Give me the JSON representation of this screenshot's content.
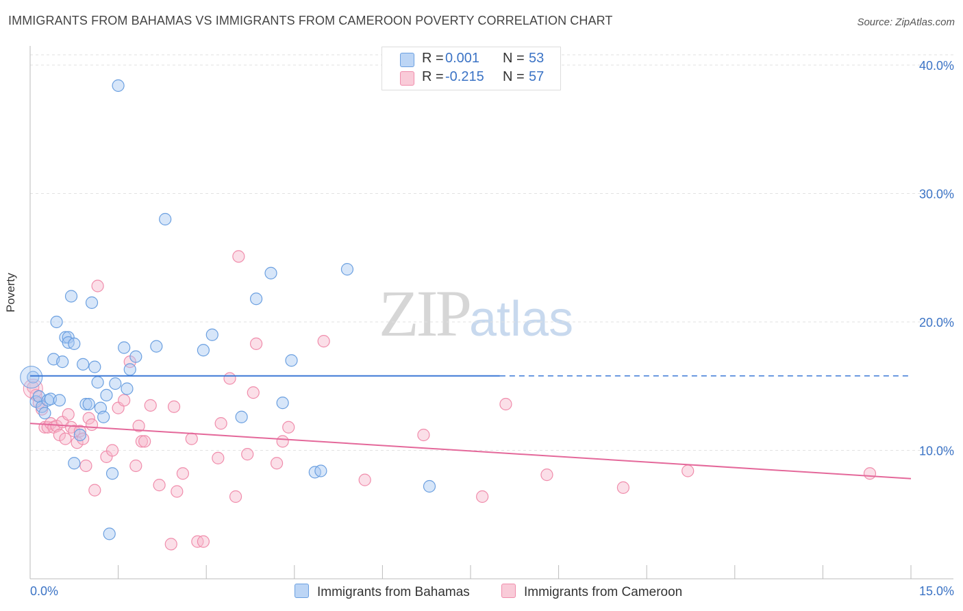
{
  "title": "IMMIGRANTS FROM BAHAMAS VS IMMIGRANTS FROM CAMEROON POVERTY CORRELATION CHART",
  "source": "Source: ZipAtlas.com",
  "watermark": {
    "zip": "ZIP",
    "atlas": "atlas"
  },
  "legend": {
    "bahamas": {
      "r_label": "R =",
      "r_value": "0.001",
      "n_label": "N =",
      "n_value": "53",
      "color": "#a7c8f2"
    },
    "cameroon": {
      "r_label": "R =",
      "r_value": "-0.215",
      "n_label": "N =",
      "n_value": "57",
      "color": "#f7b8cb"
    }
  },
  "chart_data": {
    "type": "scatter",
    "title": "IMMIGRANTS FROM BAHAMAS VS IMMIGRANTS FROM CAMEROON POVERTY CORRELATION CHART",
    "xlabel": "",
    "ylabel": "Poverty",
    "xlim": [
      0,
      15
    ],
    "ylim": [
      0,
      40
    ],
    "x_tick_labels": [
      "0.0%",
      "15.0%"
    ],
    "y_tick_labels": [
      "10.0%",
      "20.0%",
      "30.0%",
      "40.0%"
    ],
    "y_ticks": [
      10,
      20,
      30,
      40
    ],
    "grid": true,
    "legend_position": "top-center",
    "series": [
      {
        "name": "Immigrants from Bahamas",
        "color": "#6a9fe0",
        "fill": "#a7c8f2",
        "trend": {
          "x": [
            0,
            8.0
          ],
          "y": [
            15.8,
            15.8
          ],
          "dashed_extension_to": 15
        },
        "points": [
          [
            0.05,
            15.7
          ],
          [
            0.1,
            13.8
          ],
          [
            0.15,
            14.2
          ],
          [
            0.2,
            13.4
          ],
          [
            0.25,
            12.9
          ],
          [
            0.3,
            13.9
          ],
          [
            0.35,
            14.0
          ],
          [
            0.4,
            17.1
          ],
          [
            0.45,
            20.0
          ],
          [
            0.5,
            13.9
          ],
          [
            0.55,
            16.9
          ],
          [
            0.6,
            18.8
          ],
          [
            0.65,
            18.8
          ],
          [
            0.65,
            18.4
          ],
          [
            0.7,
            22.0
          ],
          [
            0.75,
            9.0
          ],
          [
            0.75,
            18.3
          ],
          [
            0.85,
            11.2
          ],
          [
            0.9,
            16.7
          ],
          [
            0.95,
            13.6
          ],
          [
            1.0,
            13.6
          ],
          [
            1.05,
            21.5
          ],
          [
            1.1,
            16.5
          ],
          [
            1.15,
            15.3
          ],
          [
            1.2,
            13.3
          ],
          [
            1.25,
            12.6
          ],
          [
            1.3,
            14.3
          ],
          [
            1.35,
            3.5
          ],
          [
            1.4,
            8.2
          ],
          [
            1.45,
            15.2
          ],
          [
            1.5,
            38.4
          ],
          [
            1.6,
            18.0
          ],
          [
            1.65,
            14.8
          ],
          [
            1.7,
            16.3
          ],
          [
            1.8,
            17.3
          ],
          [
            2.15,
            18.1
          ],
          [
            2.3,
            28.0
          ],
          [
            2.95,
            17.8
          ],
          [
            3.1,
            19.0
          ],
          [
            3.6,
            12.6
          ],
          [
            3.85,
            21.8
          ],
          [
            4.1,
            23.8
          ],
          [
            4.3,
            13.7
          ],
          [
            4.45,
            17.0
          ],
          [
            4.85,
            8.3
          ],
          [
            4.95,
            8.4
          ],
          [
            5.4,
            24.1
          ],
          [
            6.8,
            7.2
          ]
        ]
      },
      {
        "name": "Immigrants from Cameroon",
        "color": "#f08cab",
        "fill": "#f7b8cb",
        "trend": {
          "x": [
            0,
            15
          ],
          "y": [
            12.1,
            7.8
          ]
        },
        "points": [
          [
            0.05,
            14.9
          ],
          [
            0.1,
            14.3
          ],
          [
            0.15,
            13.7
          ],
          [
            0.2,
            13.2
          ],
          [
            0.25,
            11.8
          ],
          [
            0.3,
            11.8
          ],
          [
            0.35,
            12.1
          ],
          [
            0.4,
            11.8
          ],
          [
            0.45,
            11.9
          ],
          [
            0.5,
            11.2
          ],
          [
            0.55,
            12.2
          ],
          [
            0.6,
            10.9
          ],
          [
            0.65,
            12.8
          ],
          [
            0.7,
            11.8
          ],
          [
            0.75,
            11.5
          ],
          [
            0.8,
            10.6
          ],
          [
            0.85,
            11.5
          ],
          [
            0.9,
            10.9
          ],
          [
            0.95,
            8.8
          ],
          [
            1.0,
            12.5
          ],
          [
            1.05,
            12.0
          ],
          [
            1.1,
            6.9
          ],
          [
            1.15,
            22.8
          ],
          [
            1.3,
            9.5
          ],
          [
            1.4,
            10.0
          ],
          [
            1.5,
            13.3
          ],
          [
            1.6,
            13.9
          ],
          [
            1.7,
            16.9
          ],
          [
            1.8,
            8.8
          ],
          [
            1.85,
            11.9
          ],
          [
            1.9,
            10.7
          ],
          [
            1.95,
            10.7
          ],
          [
            2.05,
            13.5
          ],
          [
            2.2,
            7.3
          ],
          [
            2.4,
            2.7
          ],
          [
            2.45,
            13.4
          ],
          [
            2.5,
            6.8
          ],
          [
            2.6,
            8.2
          ],
          [
            2.75,
            10.9
          ],
          [
            2.85,
            2.9
          ],
          [
            2.95,
            2.9
          ],
          [
            3.2,
            9.4
          ],
          [
            3.25,
            12.1
          ],
          [
            3.4,
            15.6
          ],
          [
            3.5,
            6.4
          ],
          [
            3.55,
            25.1
          ],
          [
            3.7,
            9.7
          ],
          [
            3.8,
            14.5
          ],
          [
            3.85,
            18.3
          ],
          [
            4.2,
            9.0
          ],
          [
            4.3,
            10.7
          ],
          [
            4.4,
            11.8
          ],
          [
            5.0,
            18.5
          ],
          [
            5.7,
            7.7
          ],
          [
            6.7,
            11.2
          ],
          [
            7.7,
            6.4
          ],
          [
            8.1,
            13.6
          ],
          [
            8.8,
            8.1
          ],
          [
            10.1,
            7.1
          ],
          [
            11.2,
            8.4
          ],
          [
            14.3,
            8.2
          ]
        ]
      }
    ]
  },
  "bottom_legend": [
    {
      "label": "Immigrants from Bahamas",
      "color": "#a7c8f2"
    },
    {
      "label": "Immigrants from Cameroon",
      "color": "#f7b8cb"
    }
  ]
}
